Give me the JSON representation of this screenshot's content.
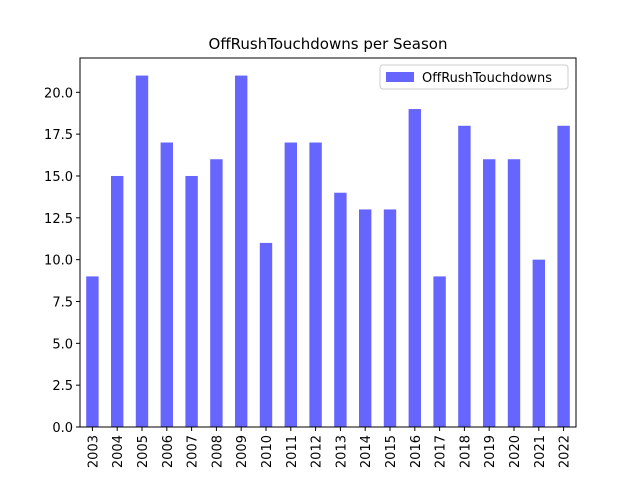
{
  "chart_data": {
    "type": "bar",
    "title": "OffRushTouchdowns per Season",
    "categories": [
      "2003",
      "2004",
      "2005",
      "2006",
      "2007",
      "2008",
      "2009",
      "2010",
      "2011",
      "2012",
      "2013",
      "2014",
      "2015",
      "2016",
      "2017",
      "2018",
      "2019",
      "2020",
      "2021",
      "2022"
    ],
    "series": [
      {
        "name": "OffRushTouchdowns",
        "color": "#6666ff",
        "values": [
          9,
          15,
          21,
          17,
          15,
          16,
          21,
          11,
          17,
          17,
          14,
          13,
          13,
          19,
          9,
          18,
          16,
          16,
          10,
          18
        ]
      }
    ],
    "ylim": [
      0,
      22.05
    ],
    "yticks": [
      {
        "value": 0,
        "label": "0.0"
      },
      {
        "value": 2.5,
        "label": "2.5"
      },
      {
        "value": 5,
        "label": "5.0"
      },
      {
        "value": 7.5,
        "label": "7.5"
      },
      {
        "value": 10,
        "label": "10.0"
      },
      {
        "value": 12.5,
        "label": "12.5"
      },
      {
        "value": 15,
        "label": "15.0"
      },
      {
        "value": 17.5,
        "label": "17.5"
      },
      {
        "value": 20,
        "label": "20.0"
      }
    ],
    "legend": "upper right"
  }
}
